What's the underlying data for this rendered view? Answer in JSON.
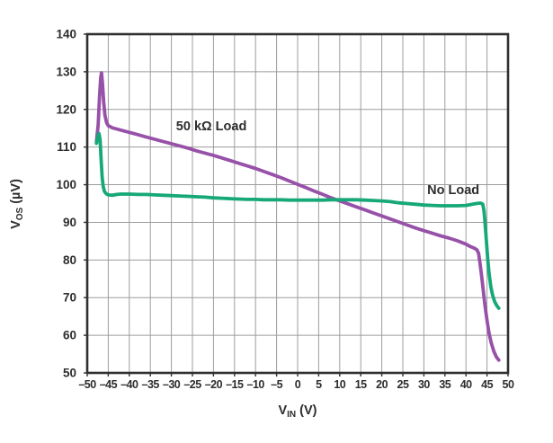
{
  "chart_data": {
    "type": "line",
    "title": "",
    "xlabel": {
      "main": "V",
      "sub": "IN",
      "unit": "(V)"
    },
    "ylabel": {
      "main": "V",
      "sub": "OS",
      "unit": "(µV)"
    },
    "xlim": [
      -50,
      50
    ],
    "ylim": [
      50,
      140
    ],
    "grid": true,
    "grid_color": "#9c9c9c",
    "border_color": "#303030",
    "tick_label_color": "#2d2d2d",
    "x_ticks": [
      {
        "v": -50,
        "label": "–50"
      },
      {
        "v": -45,
        "label": "–45"
      },
      {
        "v": -40,
        "label": "–40"
      },
      {
        "v": -35,
        "label": "–35"
      },
      {
        "v": -30,
        "label": "–30"
      },
      {
        "v": -25,
        "label": "–25"
      },
      {
        "v": -20,
        "label": "–20"
      },
      {
        "v": -15,
        "label": "–15"
      },
      {
        "v": -10,
        "label": "–10"
      },
      {
        "v": -5,
        "label": "–5"
      },
      {
        "v": 0,
        "label": "0"
      },
      {
        "v": 5,
        "label": "5"
      },
      {
        "v": 10,
        "label": "10"
      },
      {
        "v": 15,
        "label": "15"
      },
      {
        "v": 20,
        "label": "20"
      },
      {
        "v": 25,
        "label": "25"
      },
      {
        "v": 30,
        "label": "30"
      },
      {
        "v": 35,
        "label": "35"
      },
      {
        "v": 40,
        "label": "40"
      },
      {
        "v": 45,
        "label": "45"
      },
      {
        "v": 50,
        "label": "50"
      }
    ],
    "y_ticks": [
      {
        "v": 140,
        "label": "140"
      },
      {
        "v": 130,
        "label": "130"
      },
      {
        "v": 120,
        "label": "120"
      },
      {
        "v": 110,
        "label": "110"
      },
      {
        "v": 100,
        "label": "100"
      },
      {
        "v": 90,
        "label": "90"
      },
      {
        "v": 80,
        "label": "80"
      },
      {
        "v": 70,
        "label": "70"
      },
      {
        "v": 60,
        "label": "60"
      },
      {
        "v": 50,
        "label": "50"
      }
    ],
    "series": [
      {
        "name": "50 kΩ Load",
        "color": "#9751a8",
        "points": [
          [
            -47.8,
            111.5
          ],
          [
            -47.4,
            116
          ],
          [
            -47.1,
            123
          ],
          [
            -46.8,
            128.5
          ],
          [
            -46.6,
            129.7
          ],
          [
            -46.4,
            127.5
          ],
          [
            -46.1,
            122
          ],
          [
            -45.8,
            118.5
          ],
          [
            -45.4,
            116.5
          ],
          [
            -45,
            115.7
          ],
          [
            -44,
            115.1
          ],
          [
            -42,
            114.5
          ],
          [
            -40,
            113.9
          ],
          [
            -38,
            113.3
          ],
          [
            -36,
            112.7
          ],
          [
            -34,
            112.1
          ],
          [
            -32,
            111.5
          ],
          [
            -30,
            110.9
          ],
          [
            -28,
            110.3
          ],
          [
            -26,
            109.7
          ],
          [
            -24,
            109
          ],
          [
            -22,
            108.4
          ],
          [
            -20,
            107.8
          ],
          [
            -18,
            107.1
          ],
          [
            -16,
            106.4
          ],
          [
            -14,
            105.7
          ],
          [
            -12,
            105
          ],
          [
            -10,
            104.3
          ],
          [
            -8,
            103.5
          ],
          [
            -6,
            102.7
          ],
          [
            -4,
            101.9
          ],
          [
            -2,
            101
          ],
          [
            0,
            100.1
          ],
          [
            2,
            99.2
          ],
          [
            4,
            98.3
          ],
          [
            6,
            97.4
          ],
          [
            8,
            96.5
          ],
          [
            10,
            95.7
          ],
          [
            12,
            94.9
          ],
          [
            14,
            94.1
          ],
          [
            16,
            93.3
          ],
          [
            18,
            92.5
          ],
          [
            20,
            91.7
          ],
          [
            22,
            90.9
          ],
          [
            24,
            90.1
          ],
          [
            26,
            89.3
          ],
          [
            28,
            88.5
          ],
          [
            30,
            87.8
          ],
          [
            32,
            87.1
          ],
          [
            34,
            86.4
          ],
          [
            36,
            85.8
          ],
          [
            38,
            85.1
          ],
          [
            40,
            84.2
          ],
          [
            41,
            83.6
          ],
          [
            42,
            83.1
          ],
          [
            42.6,
            82.7
          ],
          [
            43,
            81.8
          ],
          [
            43.3,
            79.5
          ],
          [
            43.7,
            76
          ],
          [
            44.1,
            72
          ],
          [
            44.5,
            68
          ],
          [
            45,
            64
          ],
          [
            45.5,
            60.5
          ],
          [
            46,
            58
          ],
          [
            46.6,
            55.8
          ],
          [
            47.2,
            54.3
          ],
          [
            47.8,
            53.4
          ]
        ]
      },
      {
        "name": "No Load",
        "color": "#16a878",
        "points": [
          [
            -47.8,
            111
          ],
          [
            -47.5,
            112.5
          ],
          [
            -47.2,
            113.6
          ],
          [
            -46.95,
            112
          ],
          [
            -46.7,
            107
          ],
          [
            -46.45,
            102
          ],
          [
            -46.2,
            99.5
          ],
          [
            -45.9,
            98.2
          ],
          [
            -45.5,
            97.6
          ],
          [
            -45,
            97.3
          ],
          [
            -44,
            97.2
          ],
          [
            -43,
            97.4
          ],
          [
            -42,
            97.5
          ],
          [
            -40,
            97.5
          ],
          [
            -38,
            97.4
          ],
          [
            -36,
            97.4
          ],
          [
            -34,
            97.3
          ],
          [
            -32,
            97.2
          ],
          [
            -30,
            97.1
          ],
          [
            -28,
            97
          ],
          [
            -26,
            96.9
          ],
          [
            -24,
            96.8
          ],
          [
            -22,
            96.7
          ],
          [
            -20,
            96.5
          ],
          [
            -18,
            96.4
          ],
          [
            -16,
            96.3
          ],
          [
            -14,
            96.2
          ],
          [
            -12,
            96.1
          ],
          [
            -10,
            96.1
          ],
          [
            -8,
            96
          ],
          [
            -6,
            96
          ],
          [
            -4,
            96
          ],
          [
            -2,
            95.9
          ],
          [
            0,
            95.9
          ],
          [
            2,
            95.9
          ],
          [
            4,
            95.9
          ],
          [
            6,
            95.9
          ],
          [
            8,
            96
          ],
          [
            10,
            96
          ],
          [
            12,
            96
          ],
          [
            14,
            96
          ],
          [
            16,
            95.9
          ],
          [
            18,
            95.8
          ],
          [
            20,
            95.7
          ],
          [
            22,
            95.5
          ],
          [
            24,
            95.2
          ],
          [
            26,
            95
          ],
          [
            28,
            94.8
          ],
          [
            30,
            94.6
          ],
          [
            32,
            94.5
          ],
          [
            34,
            94.4
          ],
          [
            36,
            94.4
          ],
          [
            38,
            94.4
          ],
          [
            40,
            94.5
          ],
          [
            41,
            94.7
          ],
          [
            42,
            94.9
          ],
          [
            43,
            95.1
          ],
          [
            43.6,
            95.1
          ],
          [
            44,
            94.8
          ],
          [
            44.3,
            93
          ],
          [
            44.6,
            89
          ],
          [
            44.9,
            84.5
          ],
          [
            45.2,
            80
          ],
          [
            45.5,
            76.5
          ],
          [
            45.9,
            73
          ],
          [
            46.3,
            70.8
          ],
          [
            46.8,
            69
          ],
          [
            47.3,
            67.9
          ],
          [
            47.8,
            67.2
          ]
        ]
      }
    ],
    "annotations": [
      {
        "text": "50 kΩ Load",
        "x": -20.5,
        "y": 115.6
      },
      {
        "text": "No Load",
        "x": 37,
        "y": 98.7
      }
    ]
  }
}
